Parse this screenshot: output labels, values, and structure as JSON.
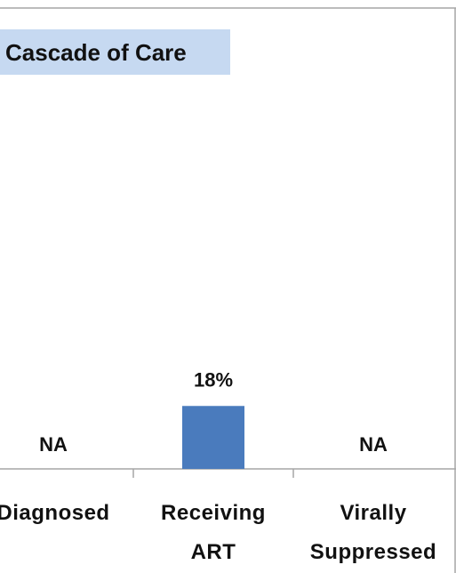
{
  "chart_data": {
    "type": "bar",
    "title": "Cascade of Care",
    "categories": [
      "Diagnosed",
      [
        "Receiving",
        "ART"
      ],
      [
        "Virally",
        "Suppressed"
      ]
    ],
    "values": [
      null,
      18,
      null
    ],
    "data_labels": [
      "NA",
      "18%",
      "NA"
    ],
    "ylim": [
      0,
      100
    ],
    "grid": false,
    "legend": "none",
    "xlabel": "",
    "ylabel": ""
  },
  "colors": {
    "bar": "#4a7bbd",
    "title_background": "#c6d9f1",
    "axis": "#a6a6a6",
    "frame": "#a6a6a6"
  }
}
